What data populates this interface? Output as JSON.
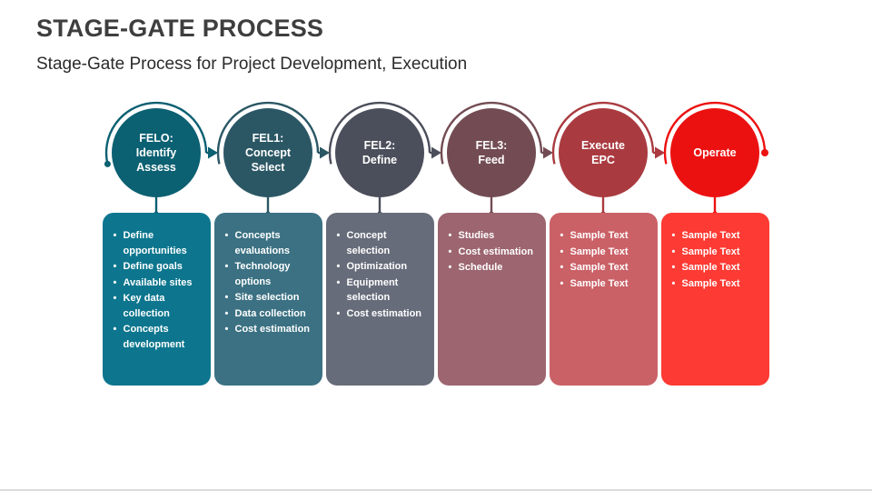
{
  "slide": {
    "title": "STAGE-GATE PROCESS",
    "subtitle": "Stage-Gate Process for Project Development, Execution",
    "bullet_char": "•",
    "title_color": "#3e3e3e",
    "background": "#ffffff"
  },
  "stages": [
    {
      "circle_label": "FELO:\nIdentify\nAssess",
      "circle_color": "#0b6072",
      "box_color": "#0d768e",
      "bullets": [
        "Define opportunities",
        "Define goals",
        "Available sites",
        "Key data collection",
        "Concepts development"
      ]
    },
    {
      "circle_label": "FEL1:\nConcept\nSelect",
      "circle_color": "#2b5765",
      "box_color": "#3b7183",
      "bullets": [
        "Concepts evaluations",
        "Technology options",
        "Site selection",
        "Data collection",
        "Cost estimation"
      ]
    },
    {
      "circle_label": "FEL2:\nDefine",
      "circle_color": "#4b4f5b",
      "box_color": "#676c7a",
      "bullets": [
        "Concept selection",
        "Optimization",
        "Equipment selection",
        "Cost estimation"
      ]
    },
    {
      "circle_label": "FEL3:\nFeed",
      "circle_color": "#734c53",
      "box_color": "#9c6570",
      "bullets": [
        "Studies",
        "Cost estimation",
        "Schedule"
      ]
    },
    {
      "circle_label": "Execute\nEPC",
      "circle_color": "#a93b40",
      "box_color": "#ca6167",
      "bullets": [
        "Sample Text",
        "Sample Text",
        "Sample Text",
        "Sample Text"
      ]
    },
    {
      "circle_label": "Operate",
      "circle_color": "#ec1111",
      "box_color": "#fd3a33",
      "bullets": [
        "Sample Text",
        "Sample Text",
        "Sample Text",
        "Sample Text"
      ]
    }
  ]
}
